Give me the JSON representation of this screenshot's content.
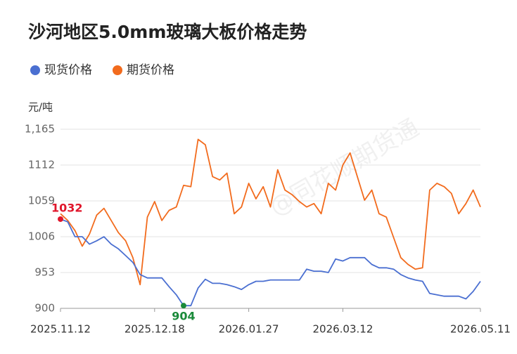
{
  "chart_data": {
    "type": "line",
    "title": "沙河地区5.0mm玻璃大板价格走势",
    "y_label": "元/吨",
    "watermark": "@同花顺期货通",
    "categories": [
      "2025.11.12",
      null,
      null,
      null,
      null,
      null,
      null,
      null,
      null,
      null,
      null,
      null,
      null,
      "2025.12.18",
      null,
      null,
      null,
      null,
      null,
      null,
      null,
      null,
      null,
      null,
      null,
      null,
      "2026.01.27",
      null,
      null,
      null,
      null,
      null,
      null,
      null,
      null,
      null,
      null,
      null,
      null,
      "2026.03.12",
      null,
      null,
      null,
      null,
      null,
      null,
      null,
      null,
      null,
      null,
      null,
      null,
      null,
      null,
      null,
      null,
      null,
      null,
      "2026.05.11"
    ],
    "series": [
      {
        "name": "现货价格",
        "color": "#4a6fd1",
        "values": [
          1032,
          1028,
          1006,
          1006,
          995,
          1000,
          1006,
          995,
          988,
          978,
          968,
          950,
          945,
          945,
          945,
          932,
          920,
          904,
          904,
          930,
          943,
          937,
          937,
          935,
          932,
          928,
          935,
          940,
          940,
          942,
          942,
          942,
          942,
          942,
          958,
          955,
          955,
          953,
          973,
          970,
          975,
          975,
          975,
          965,
          960,
          960,
          958,
          950,
          945,
          942,
          940,
          922,
          920,
          918,
          918,
          918,
          914,
          925,
          940
        ]
      },
      {
        "name": "期货价格",
        "color": "#f26b1d",
        "values": [
          1040,
          1030,
          1015,
          992,
          1010,
          1038,
          1048,
          1030,
          1012,
          1000,
          975,
          935,
          1035,
          1058,
          1030,
          1045,
          1050,
          1082,
          1080,
          1150,
          1142,
          1095,
          1090,
          1100,
          1040,
          1050,
          1085,
          1062,
          1080,
          1050,
          1105,
          1075,
          1068,
          1058,
          1050,
          1055,
          1040,
          1085,
          1075,
          1112,
          1130,
          1095,
          1060,
          1075,
          1040,
          1035,
          1005,
          975,
          965,
          958,
          960,
          1075,
          1085,
          1080,
          1070,
          1040,
          1055,
          1075,
          1050
        ]
      }
    ],
    "ylim": [
      900,
      1165
    ],
    "yticks": [
      900,
      953,
      1006,
      1059,
      1112,
      {
        "value": 1165,
        "label": "1,165"
      }
    ],
    "grid": true,
    "start_label_color": "#e0162b",
    "min_label_color": "#1a8a3a"
  }
}
